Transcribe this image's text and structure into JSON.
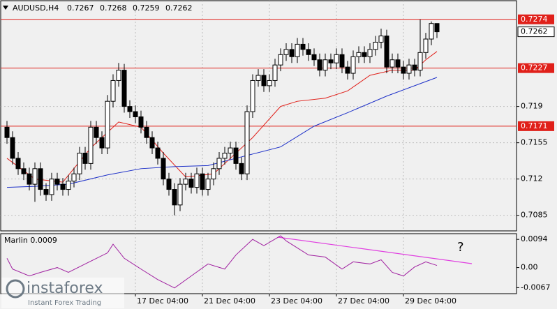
{
  "chart_data": {
    "type": "candlestick",
    "symbol": "AUDUSD,H4",
    "header_values": [
      0.7267,
      0.7268,
      0.7259,
      0.7262
    ],
    "ylim": [
      0.707,
      0.7292
    ],
    "yticks": [
      0.719,
      0.7155,
      0.712,
      0.7085
    ],
    "grid": true,
    "levels": [
      0.7274,
      0.7227,
      0.7171
    ],
    "level_color": "#e0201a",
    "last_price": 0.7262,
    "x_labels": [
      {
        "value": 23,
        "label": "17 Dec 04:00"
      },
      {
        "value": 35,
        "label": "21 Dec 04:00"
      },
      {
        "value": 47,
        "label": "23 Dec 04:00"
      },
      {
        "value": 59,
        "label": "27 Dec 04:00"
      },
      {
        "value": 71,
        "label": "29 Dec 04:00"
      }
    ],
    "candles": {
      "open": [
        0.717,
        0.716,
        0.714,
        0.713,
        0.7125,
        0.7115,
        0.713,
        0.711,
        0.7105,
        0.712,
        0.7115,
        0.711,
        0.7118,
        0.7125,
        0.7145,
        0.7135,
        0.717,
        0.716,
        0.715,
        0.7195,
        0.7215,
        0.7225,
        0.719,
        0.7185,
        0.718,
        0.717,
        0.716,
        0.715,
        0.714,
        0.712,
        0.711,
        0.7095,
        0.7115,
        0.712,
        0.7112,
        0.7125,
        0.711,
        0.712,
        0.713,
        0.714,
        0.7145,
        0.715,
        0.7135,
        0.7125,
        0.7185,
        0.7215,
        0.722,
        0.721,
        0.7215,
        0.723,
        0.724,
        0.7245,
        0.7238,
        0.725,
        0.7245,
        0.724,
        0.7235,
        0.7225,
        0.7235,
        0.7232,
        0.724,
        0.7228,
        0.7222,
        0.7238,
        0.7242,
        0.7238,
        0.7245,
        0.7252,
        0.7258,
        0.7228,
        0.7235,
        0.7228,
        0.7222,
        0.723,
        0.7225,
        0.7242,
        0.7255,
        0.727
      ],
      "high": [
        0.7176,
        0.7166,
        0.7146,
        0.7136,
        0.7131,
        0.7136,
        0.7136,
        0.7116,
        0.7126,
        0.7126,
        0.7121,
        0.7124,
        0.7131,
        0.7151,
        0.7151,
        0.7176,
        0.7176,
        0.7166,
        0.7201,
        0.7221,
        0.7232,
        0.7231,
        0.7196,
        0.7191,
        0.7186,
        0.7176,
        0.7166,
        0.7156,
        0.7146,
        0.7126,
        0.7116,
        0.7121,
        0.7126,
        0.7126,
        0.7131,
        0.7131,
        0.7126,
        0.7136,
        0.7146,
        0.7151,
        0.7156,
        0.7156,
        0.7141,
        0.7191,
        0.7221,
        0.7226,
        0.7226,
        0.7221,
        0.7236,
        0.7246,
        0.7251,
        0.7251,
        0.7256,
        0.7256,
        0.7251,
        0.7246,
        0.7241,
        0.7241,
        0.7241,
        0.7246,
        0.7246,
        0.7234,
        0.7244,
        0.7248,
        0.7248,
        0.7251,
        0.7258,
        0.7265,
        0.7264,
        0.7241,
        0.7241,
        0.7234,
        0.7236,
        0.7236,
        0.7274,
        0.7261,
        0.7272,
        0.727
      ],
      "low": [
        0.7154,
        0.7134,
        0.7124,
        0.7119,
        0.7109,
        0.7098,
        0.7104,
        0.7099,
        0.7099,
        0.7109,
        0.7104,
        0.7104,
        0.7112,
        0.7119,
        0.7129,
        0.7129,
        0.7154,
        0.7144,
        0.7144,
        0.7189,
        0.7209,
        0.7184,
        0.7179,
        0.7174,
        0.7164,
        0.7154,
        0.7144,
        0.7134,
        0.7114,
        0.7104,
        0.7085,
        0.7089,
        0.7109,
        0.7106,
        0.7106,
        0.7104,
        0.7104,
        0.7114,
        0.7124,
        0.7134,
        0.7139,
        0.7129,
        0.7119,
        0.7119,
        0.7179,
        0.7209,
        0.7204,
        0.7204,
        0.7209,
        0.7224,
        0.7234,
        0.7232,
        0.7232,
        0.7239,
        0.7234,
        0.7229,
        0.7219,
        0.7219,
        0.7226,
        0.7226,
        0.7222,
        0.7216,
        0.7216,
        0.7232,
        0.7232,
        0.7232,
        0.7239,
        0.7246,
        0.7222,
        0.7222,
        0.7222,
        0.7216,
        0.7216,
        0.7219,
        0.7219,
        0.7236,
        0.7249,
        0.7256
      ],
      "close": [
        0.716,
        0.714,
        0.713,
        0.7125,
        0.7115,
        0.713,
        0.711,
        0.7105,
        0.712,
        0.7115,
        0.711,
        0.7118,
        0.7125,
        0.7145,
        0.7135,
        0.717,
        0.716,
        0.715,
        0.7195,
        0.7215,
        0.7225,
        0.719,
        0.7185,
        0.718,
        0.717,
        0.716,
        0.715,
        0.714,
        0.712,
        0.711,
        0.7095,
        0.7115,
        0.712,
        0.7112,
        0.7125,
        0.711,
        0.712,
        0.713,
        0.714,
        0.7145,
        0.715,
        0.7135,
        0.7125,
        0.7185,
        0.7215,
        0.722,
        0.721,
        0.7215,
        0.723,
        0.724,
        0.7245,
        0.7238,
        0.725,
        0.7245,
        0.724,
        0.7235,
        0.7225,
        0.7235,
        0.7232,
        0.724,
        0.7228,
        0.7222,
        0.7238,
        0.7242,
        0.7238,
        0.7245,
        0.7252,
        0.7258,
        0.7228,
        0.7235,
        0.7228,
        0.7222,
        0.723,
        0.7225,
        0.7242,
        0.7255,
        0.727,
        0.7262
      ]
    },
    "series": [
      {
        "color": "#e0201a",
        "x": [
          0,
          5,
          10,
          15,
          20,
          24,
          28,
          32,
          37,
          40,
          44,
          49,
          52,
          57,
          61,
          65,
          69,
          73,
          75,
          77
        ],
        "values": [
          0.714,
          0.712,
          0.7117,
          0.715,
          0.7175,
          0.717,
          0.7145,
          0.7122,
          0.7125,
          0.714,
          0.716,
          0.719,
          0.7195,
          0.7198,
          0.7205,
          0.722,
          0.7225,
          0.7225,
          0.7235,
          0.7243
        ]
      },
      {
        "color": "#1c2fc8",
        "x": [
          0,
          5,
          11,
          18,
          24,
          30,
          36,
          41,
          49,
          55,
          61,
          68,
          73,
          77
        ],
        "values": [
          0.7112,
          0.7113,
          0.7115,
          0.7124,
          0.713,
          0.7132,
          0.7133,
          0.714,
          0.7151,
          0.7171,
          0.7184,
          0.72,
          0.721,
          0.7218
        ]
      }
    ],
    "oscillator": {
      "name": "Marlin 0.0009",
      "color": "#a020a0",
      "ylim": [
        -0.0087,
        0.0113
      ],
      "yticks": [
        0.0094,
        {
          "value": 0,
          "label": "0.00"
        },
        -0.0067
      ],
      "x": [
        0,
        1,
        4,
        6,
        9,
        11,
        14,
        18,
        19,
        21,
        24,
        27,
        30,
        33,
        36,
        39,
        41,
        44,
        46,
        49,
        50,
        54,
        57,
        60,
        62,
        65,
        67,
        69,
        71,
        73,
        75,
        77
      ],
      "values": [
        0.0031,
        -0.0005,
        -0.0028,
        -0.0016,
        0,
        -0.0016,
        0.0012,
        0.0049,
        0.0078,
        0.0031,
        -0.0005,
        -0.004,
        -0.0068,
        -0.0028,
        0.0012,
        -0.0005,
        0.0042,
        0.0094,
        0.0073,
        0.0106,
        0.0089,
        0.0042,
        0.0035,
        -0.0005,
        0.0019,
        0.0012,
        0.0026,
        -0.0016,
        -0.0028,
        0.0002,
        0.0019,
        0.0007
      ],
      "annotation": "?"
    },
    "logo": {
      "name": "instaforex",
      "tagline": "Instant Forex Trading"
    }
  }
}
